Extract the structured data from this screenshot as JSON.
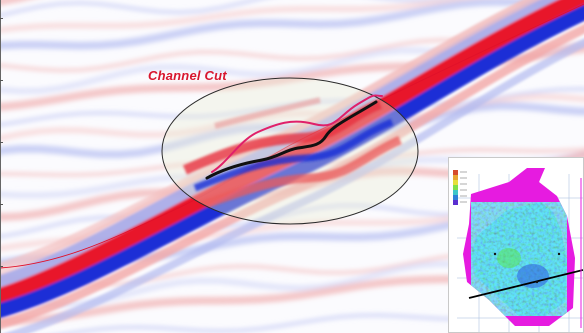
{
  "annotation": {
    "title": "Channel Cut",
    "color": "#d8172f"
  },
  "colors": {
    "positive_amplitude": "#e8152a",
    "negative_amplitude": "#1b2fd6",
    "interpreted_horizon": "#111111",
    "channel_outline": "#e0206a",
    "map_polygon": "#e61be0",
    "map_surface_low": "#1d3fd4",
    "map_surface_high": "#3ee83a"
  },
  "inset_map": {
    "title": "",
    "labels": []
  }
}
